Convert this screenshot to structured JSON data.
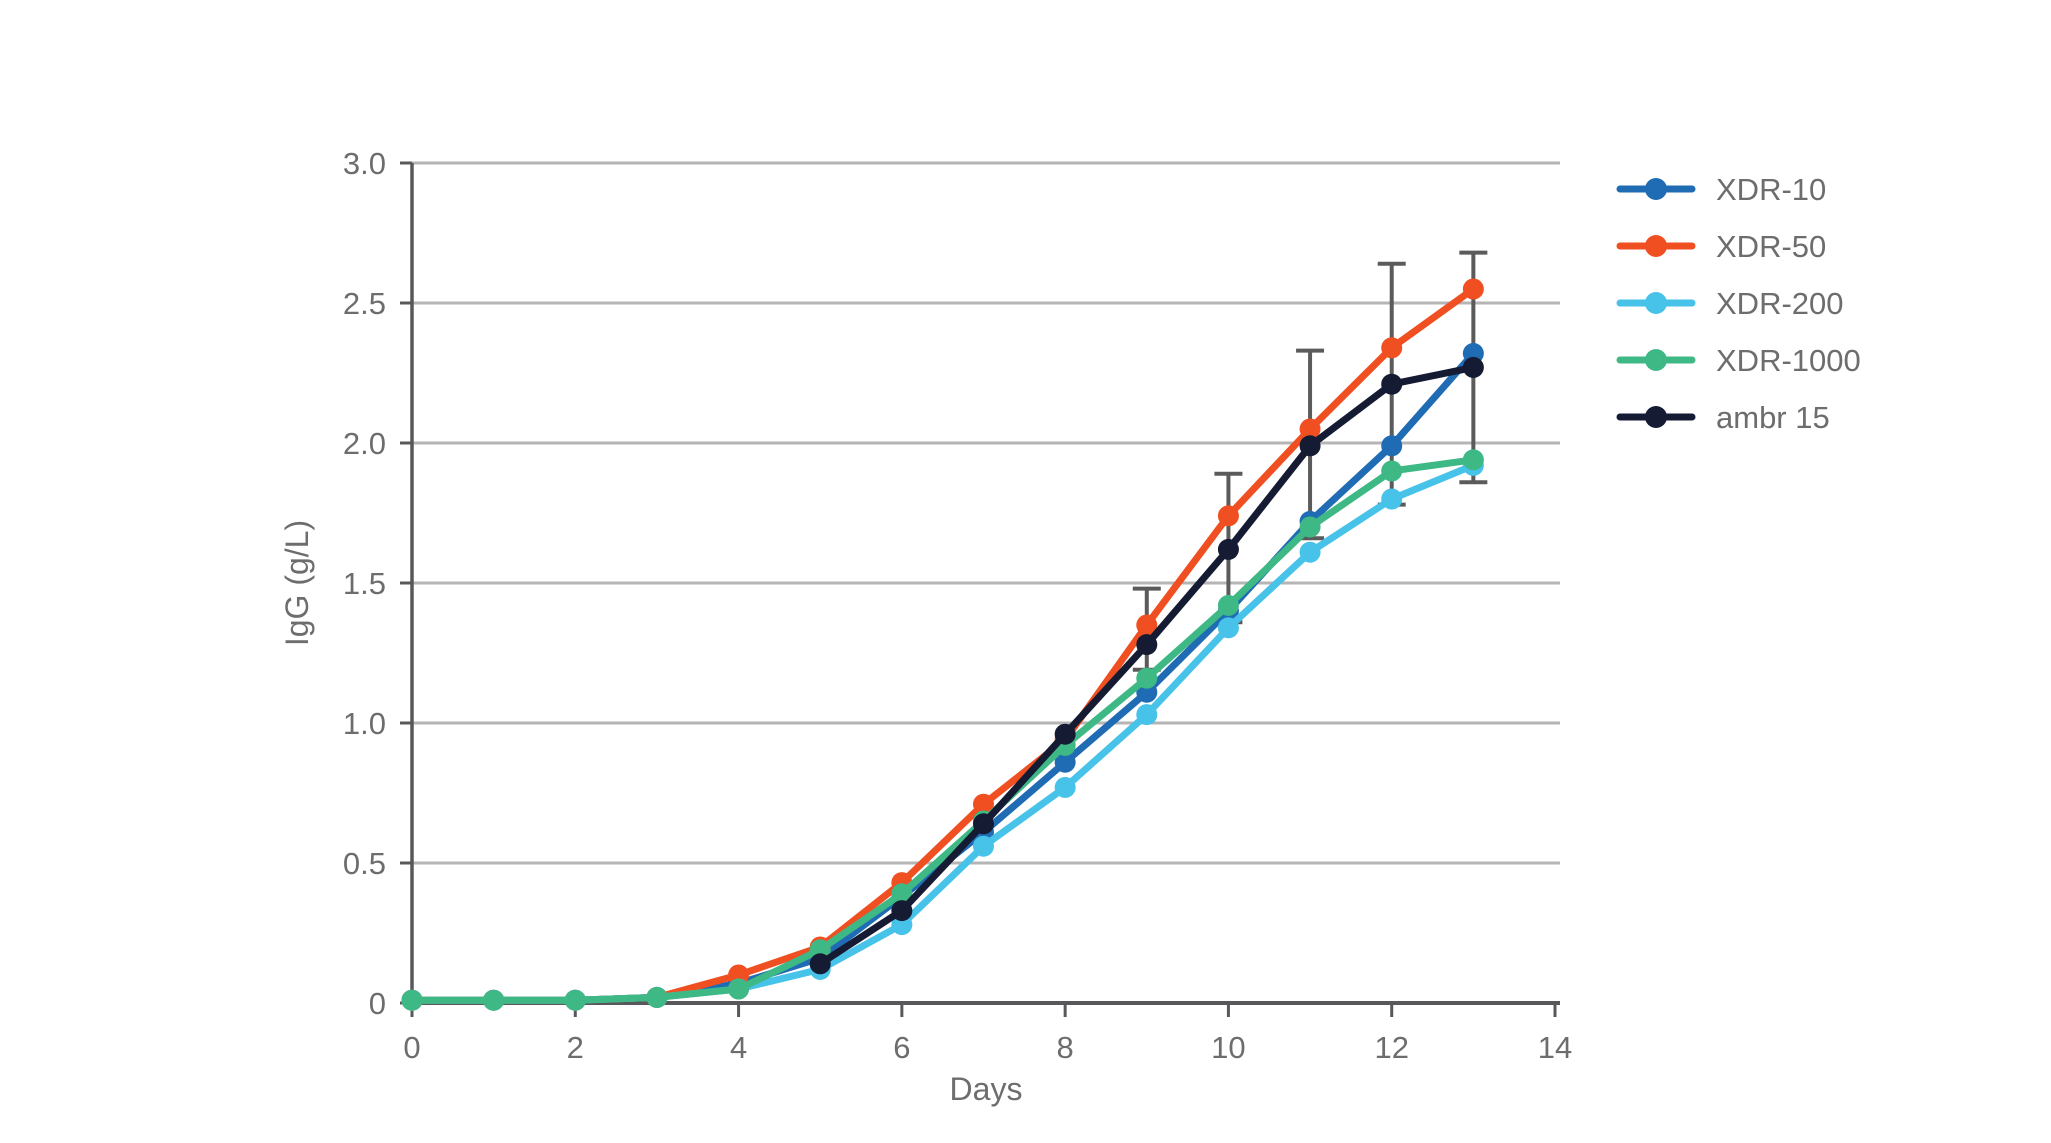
{
  "chart_data": {
    "type": "line",
    "title": "",
    "xlabel": "Days",
    "ylabel": "IgG (g/L)",
    "xlim": [
      0,
      14
    ],
    "ylim": [
      0,
      3.0
    ],
    "x_ticks": [
      0,
      2,
      4,
      6,
      8,
      10,
      12,
      14
    ],
    "x_tick_labels": [
      "0",
      "2",
      "4",
      "6",
      "8",
      "10",
      "12",
      "14"
    ],
    "y_ticks": [
      0,
      0.5,
      1.0,
      1.5,
      2.0,
      2.5,
      3.0
    ],
    "y_tick_labels": [
      "0",
      "0.5",
      "1.0",
      "1.5",
      "2.0",
      "2.5",
      "3.0"
    ],
    "grid": "horizontal",
    "legend_position": "right",
    "colors": {
      "grid": "#b5b5b5",
      "axis": "#58585a",
      "tick_text": "#6d6d6d",
      "error_bar": "#5b5b5b"
    },
    "series": [
      {
        "name": "XDR-10",
        "color": "#1f6cb4",
        "marker": "circle",
        "x": [
          0,
          1,
          2,
          3,
          4,
          5,
          6,
          7,
          8,
          9,
          10,
          11,
          12,
          13
        ],
        "y": [
          0.01,
          0.01,
          0.01,
          0.02,
          0.07,
          0.16,
          0.38,
          0.61,
          0.86,
          1.11,
          1.4,
          1.72,
          1.99,
          2.32
        ]
      },
      {
        "name": "XDR-50",
        "color": "#f04f21",
        "marker": "circle",
        "x": [
          0,
          1,
          2,
          3,
          4,
          5,
          6,
          7,
          8,
          9,
          10,
          11,
          12,
          13
        ],
        "y": [
          0.01,
          0.01,
          0.01,
          0.02,
          0.1,
          0.2,
          0.43,
          0.71,
          0.94,
          1.35,
          1.74,
          2.05,
          2.34,
          2.55
        ]
      },
      {
        "name": "XDR-200",
        "color": "#47c2e9",
        "marker": "circle",
        "x": [
          0,
          1,
          2,
          3,
          4,
          5,
          6,
          7,
          8,
          9,
          10,
          11,
          12,
          13
        ],
        "y": [
          0.01,
          0.01,
          0.01,
          0.02,
          0.05,
          0.12,
          0.28,
          0.56,
          0.77,
          1.03,
          1.34,
          1.61,
          1.8,
          1.92
        ]
      },
      {
        "name": "XDR-1000",
        "color": "#3eb885",
        "marker": "circle",
        "x": [
          0,
          1,
          2,
          3,
          4,
          5,
          6,
          7,
          8,
          9,
          10,
          11,
          12,
          13
        ],
        "y": [
          0.01,
          0.01,
          0.01,
          0.02,
          0.05,
          0.19,
          0.39,
          0.65,
          0.92,
          1.16,
          1.42,
          1.7,
          1.9,
          1.94
        ]
      },
      {
        "name": "ambr 15",
        "color": "#141b33",
        "marker": "circle",
        "x": [
          5,
          6,
          7,
          8,
          9,
          10,
          11,
          12,
          13
        ],
        "y": [
          0.14,
          0.33,
          0.64,
          0.96,
          1.28,
          1.62,
          1.99,
          2.21,
          2.27
        ],
        "error_bars": [
          {
            "x": 9,
            "low": 1.19,
            "high": 1.48
          },
          {
            "x": 10,
            "low": 1.36,
            "high": 1.89
          },
          {
            "x": 11,
            "low": 1.66,
            "high": 2.33
          },
          {
            "x": 12,
            "low": 1.78,
            "high": 2.64
          },
          {
            "x": 13,
            "low": 1.86,
            "high": 2.68
          }
        ]
      }
    ]
  }
}
